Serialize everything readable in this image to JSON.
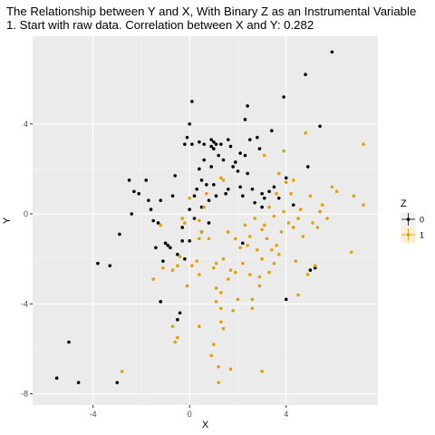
{
  "chart_data": {
    "type": "scatter",
    "title": "The Relationship between Y and X, With Binary Z as an Instrumental Variable",
    "subtitle": "1. Start with raw data. Correlation between X and Y: 0.282",
    "xlabel": "X",
    "ylabel": "Y",
    "xlim": [
      -6.5,
      7.8
    ],
    "ylim": [
      -8.5,
      7.9
    ],
    "xticks": [
      -4,
      0,
      4
    ],
    "yticks": [
      -8,
      -4,
      0,
      4
    ],
    "grid": true,
    "legend": {
      "title": "Z",
      "position": "right",
      "entries": [
        {
          "label": "0",
          "color": "#000000"
        },
        {
          "label": "1",
          "color": "#E69F00"
        }
      ]
    },
    "series": [
      {
        "name": "0",
        "color": "#000000",
        "points": [
          [
            -5.5,
            -7.3
          ],
          [
            -5.0,
            -5.7
          ],
          [
            -4.6,
            -7.5
          ],
          [
            -3.8,
            -2.2
          ],
          [
            -3.3,
            -2.3
          ],
          [
            -3.0,
            -7.5
          ],
          [
            -2.9,
            -0.9
          ],
          [
            -2.5,
            1.5
          ],
          [
            -2.4,
            0.0
          ],
          [
            -2.3,
            1.0
          ],
          [
            -2.1,
            0.9
          ],
          [
            -1.8,
            1.5
          ],
          [
            -1.7,
            0.6
          ],
          [
            -1.6,
            0.2
          ],
          [
            -1.5,
            -0.3
          ],
          [
            -1.4,
            -1.5
          ],
          [
            -1.3,
            -0.4
          ],
          [
            -1.2,
            0.6
          ],
          [
            -1.1,
            -2.1
          ],
          [
            -1.2,
            -3.9
          ],
          [
            -1.0,
            -1.3
          ],
          [
            -0.9,
            -1.4
          ],
          [
            -0.8,
            -1.5
          ],
          [
            -0.7,
            0.8
          ],
          [
            -0.6,
            1.7
          ],
          [
            -0.5,
            -1.8
          ],
          [
            -0.4,
            -4.4
          ],
          [
            -0.5,
            -4.7
          ],
          [
            -0.3,
            -0.6
          ],
          [
            -0.3,
            -1.2
          ],
          [
            -0.2,
            -2.0
          ],
          [
            -0.2,
            3.1
          ],
          [
            -0.1,
            3.4
          ],
          [
            0.0,
            0.2
          ],
          [
            0.0,
            -1.2
          ],
          [
            0.0,
            4.0
          ],
          [
            0.1,
            5.0
          ],
          [
            0.1,
            3.1
          ],
          [
            0.2,
            -0.2
          ],
          [
            0.2,
            0.8
          ],
          [
            0.3,
            1.1
          ],
          [
            0.4,
            2.0
          ],
          [
            0.4,
            3.2
          ],
          [
            0.5,
            -0.8
          ],
          [
            0.5,
            1.5
          ],
          [
            0.5,
            0.3
          ],
          [
            0.6,
            2.4
          ],
          [
            0.6,
            3.1
          ],
          [
            0.7,
            1.3
          ],
          [
            0.8,
            0.6
          ],
          [
            0.8,
            -0.4
          ],
          [
            0.9,
            2.1
          ],
          [
            0.9,
            3.0
          ],
          [
            0.9,
            3.3
          ],
          [
            1.0,
            3.2
          ],
          [
            1.0,
            2.9
          ],
          [
            1.0,
            1.3
          ],
          [
            1.1,
            3.1
          ],
          [
            1.1,
            0.8
          ],
          [
            1.2,
            2.6
          ],
          [
            1.3,
            3.1
          ],
          [
            1.4,
            2.4
          ],
          [
            1.5,
            0.9
          ],
          [
            1.6,
            3.3
          ],
          [
            1.6,
            1.1
          ],
          [
            1.7,
            3.0
          ],
          [
            1.8,
            2.1
          ],
          [
            1.9,
            2.3
          ],
          [
            2.0,
            1.9
          ],
          [
            2.1,
            2.7
          ],
          [
            2.1,
            1.2
          ],
          [
            2.2,
            0.8
          ],
          [
            2.2,
            -1.3
          ],
          [
            2.3,
            2.6
          ],
          [
            2.3,
            4.2
          ],
          [
            2.4,
            4.8
          ],
          [
            2.4,
            1.8
          ],
          [
            2.5,
            3.3
          ],
          [
            2.6,
            1.1
          ],
          [
            2.7,
            0.5
          ],
          [
            2.8,
            3.4
          ],
          [
            2.9,
            2.9
          ],
          [
            3.0,
            0.3
          ],
          [
            3.0,
            0.9
          ],
          [
            3.1,
            0.7
          ],
          [
            3.3,
            1.0
          ],
          [
            3.4,
            3.7
          ],
          [
            3.5,
            1.2
          ],
          [
            3.7,
            0.7
          ],
          [
            3.9,
            5.2
          ],
          [
            4.0,
            -3.8
          ],
          [
            4.0,
            1.6
          ],
          [
            4.3,
            0.4
          ],
          [
            4.8,
            6.2
          ],
          [
            4.9,
            2.1
          ],
          [
            5.0,
            -2.5
          ],
          [
            5.2,
            -2.4
          ],
          [
            5.4,
            3.9
          ],
          [
            5.9,
            7.2
          ]
        ]
      },
      {
        "name": "1",
        "color": "#E69F00",
        "points": [
          [
            -2.8,
            -7.0
          ],
          [
            -1.5,
            -2.9
          ],
          [
            -1.2,
            -0.5
          ],
          [
            -1.1,
            -2.4
          ],
          [
            -0.7,
            -5.0
          ],
          [
            -0.7,
            -2.5
          ],
          [
            -0.6,
            -5.7
          ],
          [
            -0.5,
            -5.5
          ],
          [
            -0.5,
            -2.3
          ],
          [
            -0.4,
            -1.9
          ],
          [
            -0.3,
            -0.2
          ],
          [
            -0.2,
            -0.4
          ],
          [
            -0.1,
            -3.2
          ],
          [
            0.0,
            0.7
          ],
          [
            0.1,
            -2.3
          ],
          [
            0.3,
            -2.1
          ],
          [
            0.4,
            -0.3
          ],
          [
            0.4,
            -1.1
          ],
          [
            0.4,
            -2.7
          ],
          [
            0.4,
            -5.0
          ],
          [
            0.5,
            -0.8
          ],
          [
            0.6,
            0.3
          ],
          [
            0.7,
            0.9
          ],
          [
            0.8,
            -1.1
          ],
          [
            0.9,
            -6.3
          ],
          [
            1.0,
            -2.4
          ],
          [
            1.0,
            -5.8
          ],
          [
            1.1,
            -3.9
          ],
          [
            1.1,
            -2.2
          ],
          [
            1.1,
            -3.3
          ],
          [
            1.2,
            -7.5
          ],
          [
            1.2,
            -6.8
          ],
          [
            1.3,
            -4.8
          ],
          [
            1.3,
            -4.2
          ],
          [
            1.3,
            -3.5
          ],
          [
            1.3,
            1.6
          ],
          [
            1.4,
            -2.0
          ],
          [
            1.4,
            1.5
          ],
          [
            1.4,
            -5.1
          ],
          [
            1.6,
            -2.9
          ],
          [
            1.6,
            -0.8
          ],
          [
            1.7,
            -2.5
          ],
          [
            1.7,
            -6.9
          ],
          [
            1.8,
            -4.3
          ],
          [
            1.9,
            -1.1
          ],
          [
            1.9,
            -2.6
          ],
          [
            2.0,
            -3.8
          ],
          [
            2.1,
            -1.5
          ],
          [
            2.2,
            -2.2
          ],
          [
            2.3,
            -0.5
          ],
          [
            2.4,
            -1.4
          ],
          [
            2.5,
            -1.0
          ],
          [
            2.5,
            -2.7
          ],
          [
            2.6,
            -4.2
          ],
          [
            2.6,
            -3.8
          ],
          [
            2.7,
            -0.2
          ],
          [
            2.8,
            -1.6
          ],
          [
            2.9,
            -2.8
          ],
          [
            2.9,
            -3.2
          ],
          [
            3.0,
            -2.0
          ],
          [
            3.0,
            -0.7
          ],
          [
            3.0,
            -7.0
          ],
          [
            3.1,
            -0.5
          ],
          [
            3.1,
            2.6
          ],
          [
            3.2,
            -1.1
          ],
          [
            3.3,
            -2.6
          ],
          [
            3.3,
            0.3
          ],
          [
            3.4,
            -1.6
          ],
          [
            3.5,
            -0.1
          ],
          [
            3.5,
            -2.2
          ],
          [
            3.6,
            -1.4
          ],
          [
            3.6,
            0.9
          ],
          [
            3.7,
            1.8
          ],
          [
            3.7,
            -1.8
          ],
          [
            3.8,
            -0.8
          ],
          [
            3.9,
            0.1
          ],
          [
            3.9,
            2.8
          ],
          [
            4.0,
            1.4
          ],
          [
            4.1,
            -0.4
          ],
          [
            4.2,
            0.9
          ],
          [
            4.3,
            -0.6
          ],
          [
            4.3,
            1.5
          ],
          [
            4.4,
            -2.1
          ],
          [
            4.5,
            -3.6
          ],
          [
            4.5,
            -0.2
          ],
          [
            4.6,
            0.2
          ],
          [
            4.7,
            -1.0
          ],
          [
            4.8,
            3.6
          ],
          [
            4.9,
            -2.7
          ],
          [
            5.0,
            0.8
          ],
          [
            5.1,
            -0.4
          ],
          [
            5.2,
            -2.3
          ],
          [
            5.3,
            -0.6
          ],
          [
            5.4,
            0.1
          ],
          [
            5.5,
            0.4
          ],
          [
            5.7,
            -0.2
          ],
          [
            5.9,
            1.2
          ],
          [
            6.1,
            1.0
          ],
          [
            6.7,
            -1.7
          ],
          [
            6.8,
            0.8
          ],
          [
            7.2,
            0.4
          ],
          [
            7.2,
            3.1
          ]
        ]
      }
    ]
  }
}
